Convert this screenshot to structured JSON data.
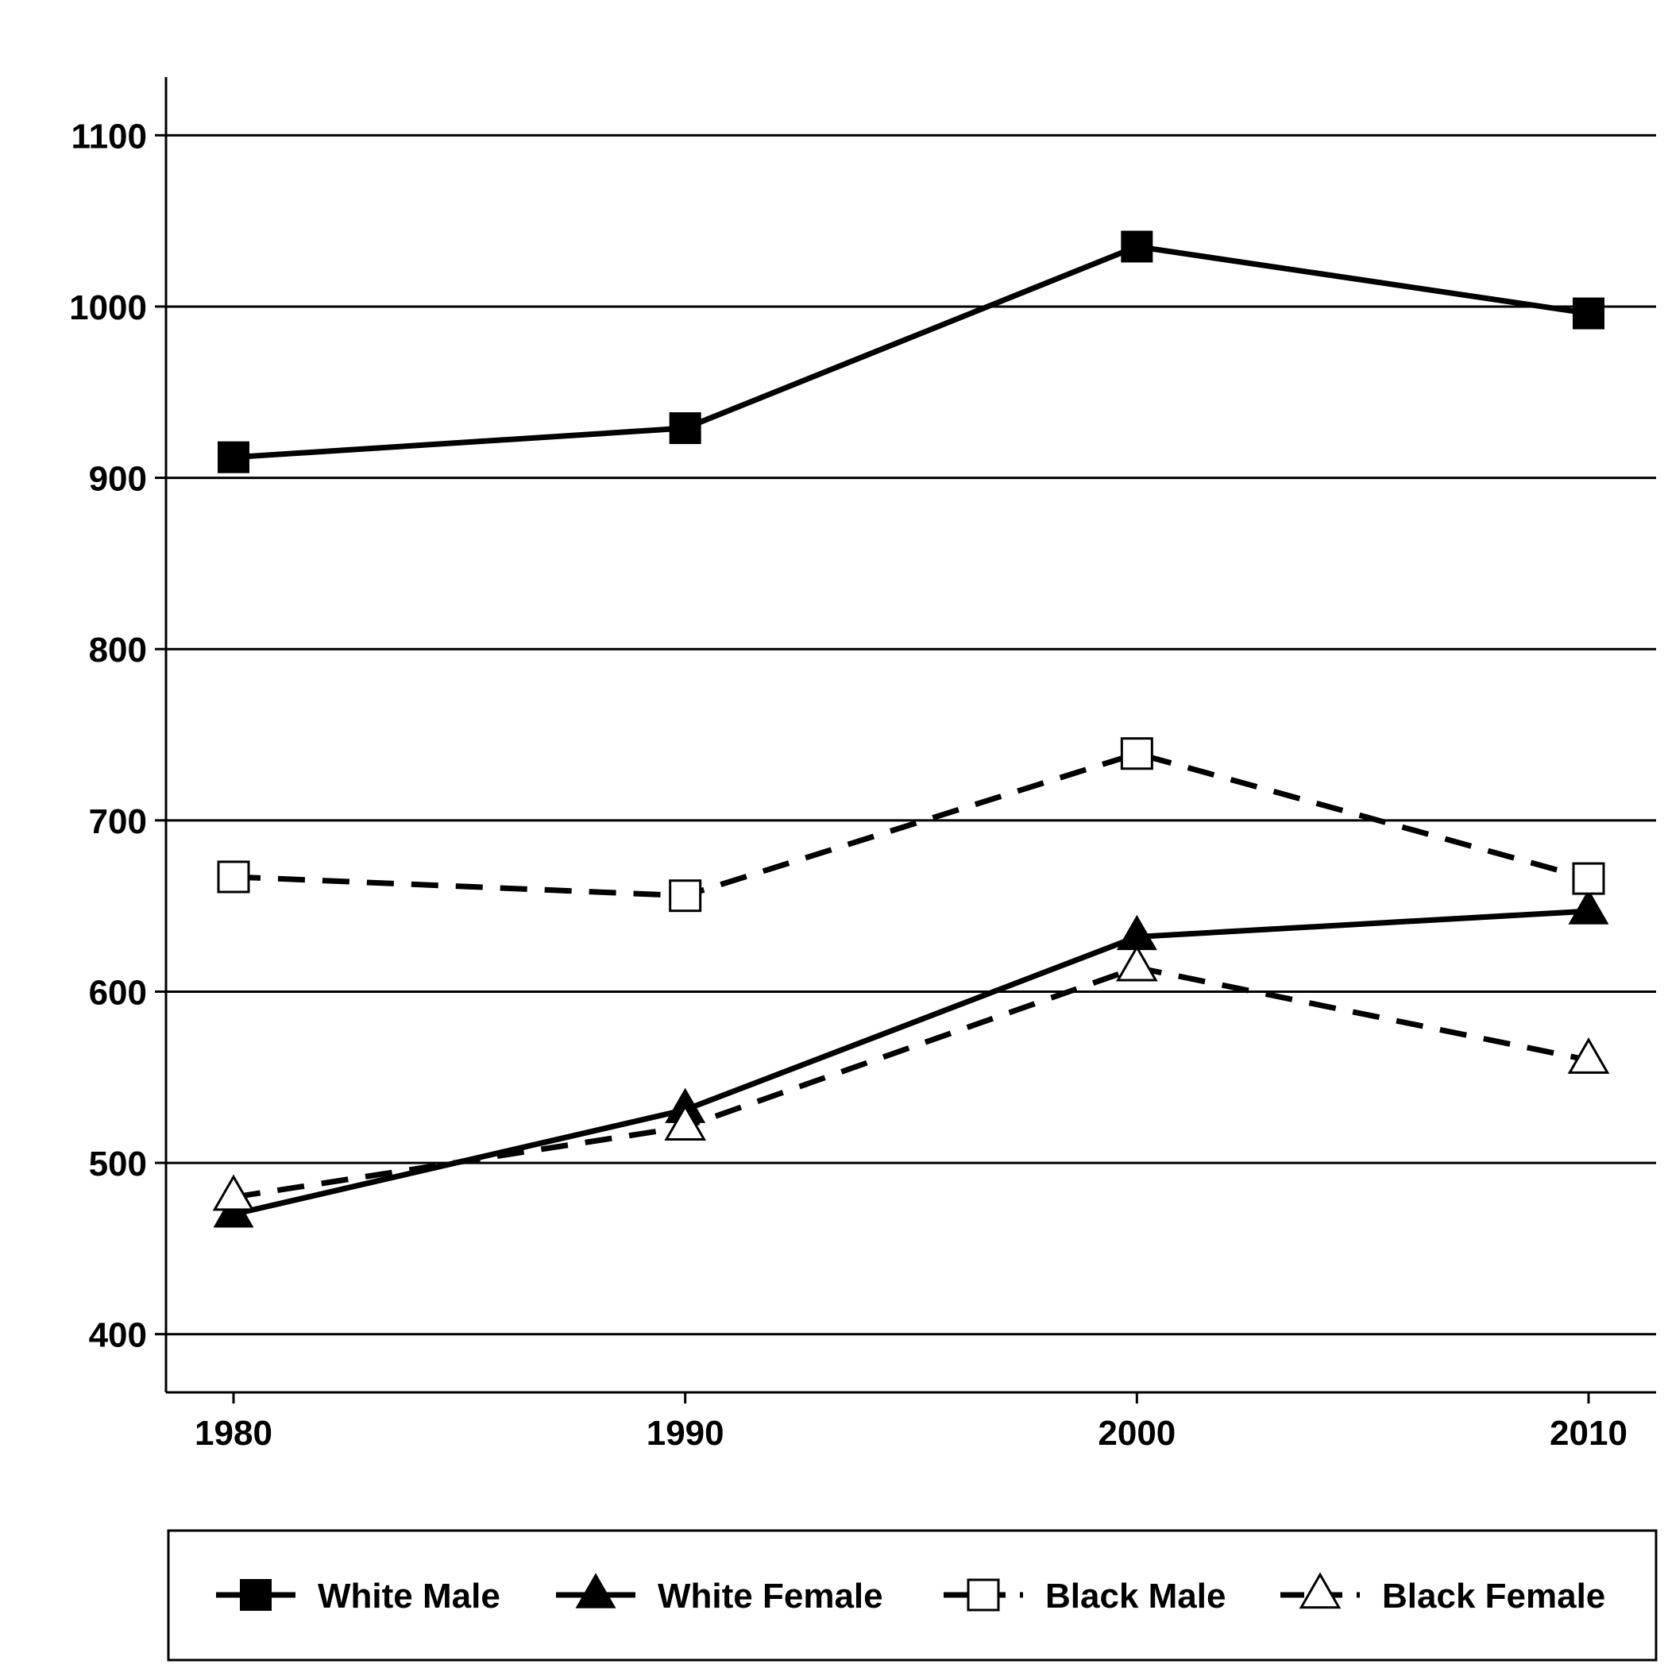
{
  "chart_data": {
    "type": "line",
    "title": "",
    "xlabel": "",
    "ylabel": "",
    "x": [
      1980,
      1990,
      2000,
      2010
    ],
    "xticks": [
      "1980",
      "1990",
      "2000",
      "2010"
    ],
    "yticks": [
      "400",
      "500",
      "600",
      "700",
      "800",
      "900",
      "1000",
      "1100"
    ],
    "ylim": [
      366,
      1134
    ],
    "grid": "horizontal",
    "legend_position": "bottom",
    "series": [
      {
        "name": "White Male",
        "values": [
          912,
          929,
          1035,
          996
        ],
        "marker": "square-filled",
        "line": "solid"
      },
      {
        "name": "White Female",
        "values": [
          470,
          531,
          632,
          647
        ],
        "marker": "triangle-filled",
        "line": "solid"
      },
      {
        "name": "Black Male",
        "values": [
          667,
          656,
          739,
          666
        ],
        "marker": "square-open",
        "line": "dashed"
      },
      {
        "name": "Black Female",
        "values": [
          480,
          521,
          614,
          560
        ],
        "marker": "triangle-open",
        "line": "dashed"
      }
    ],
    "colors": {
      "line": "#000000",
      "marker_open_fill": "#ffffff"
    }
  }
}
